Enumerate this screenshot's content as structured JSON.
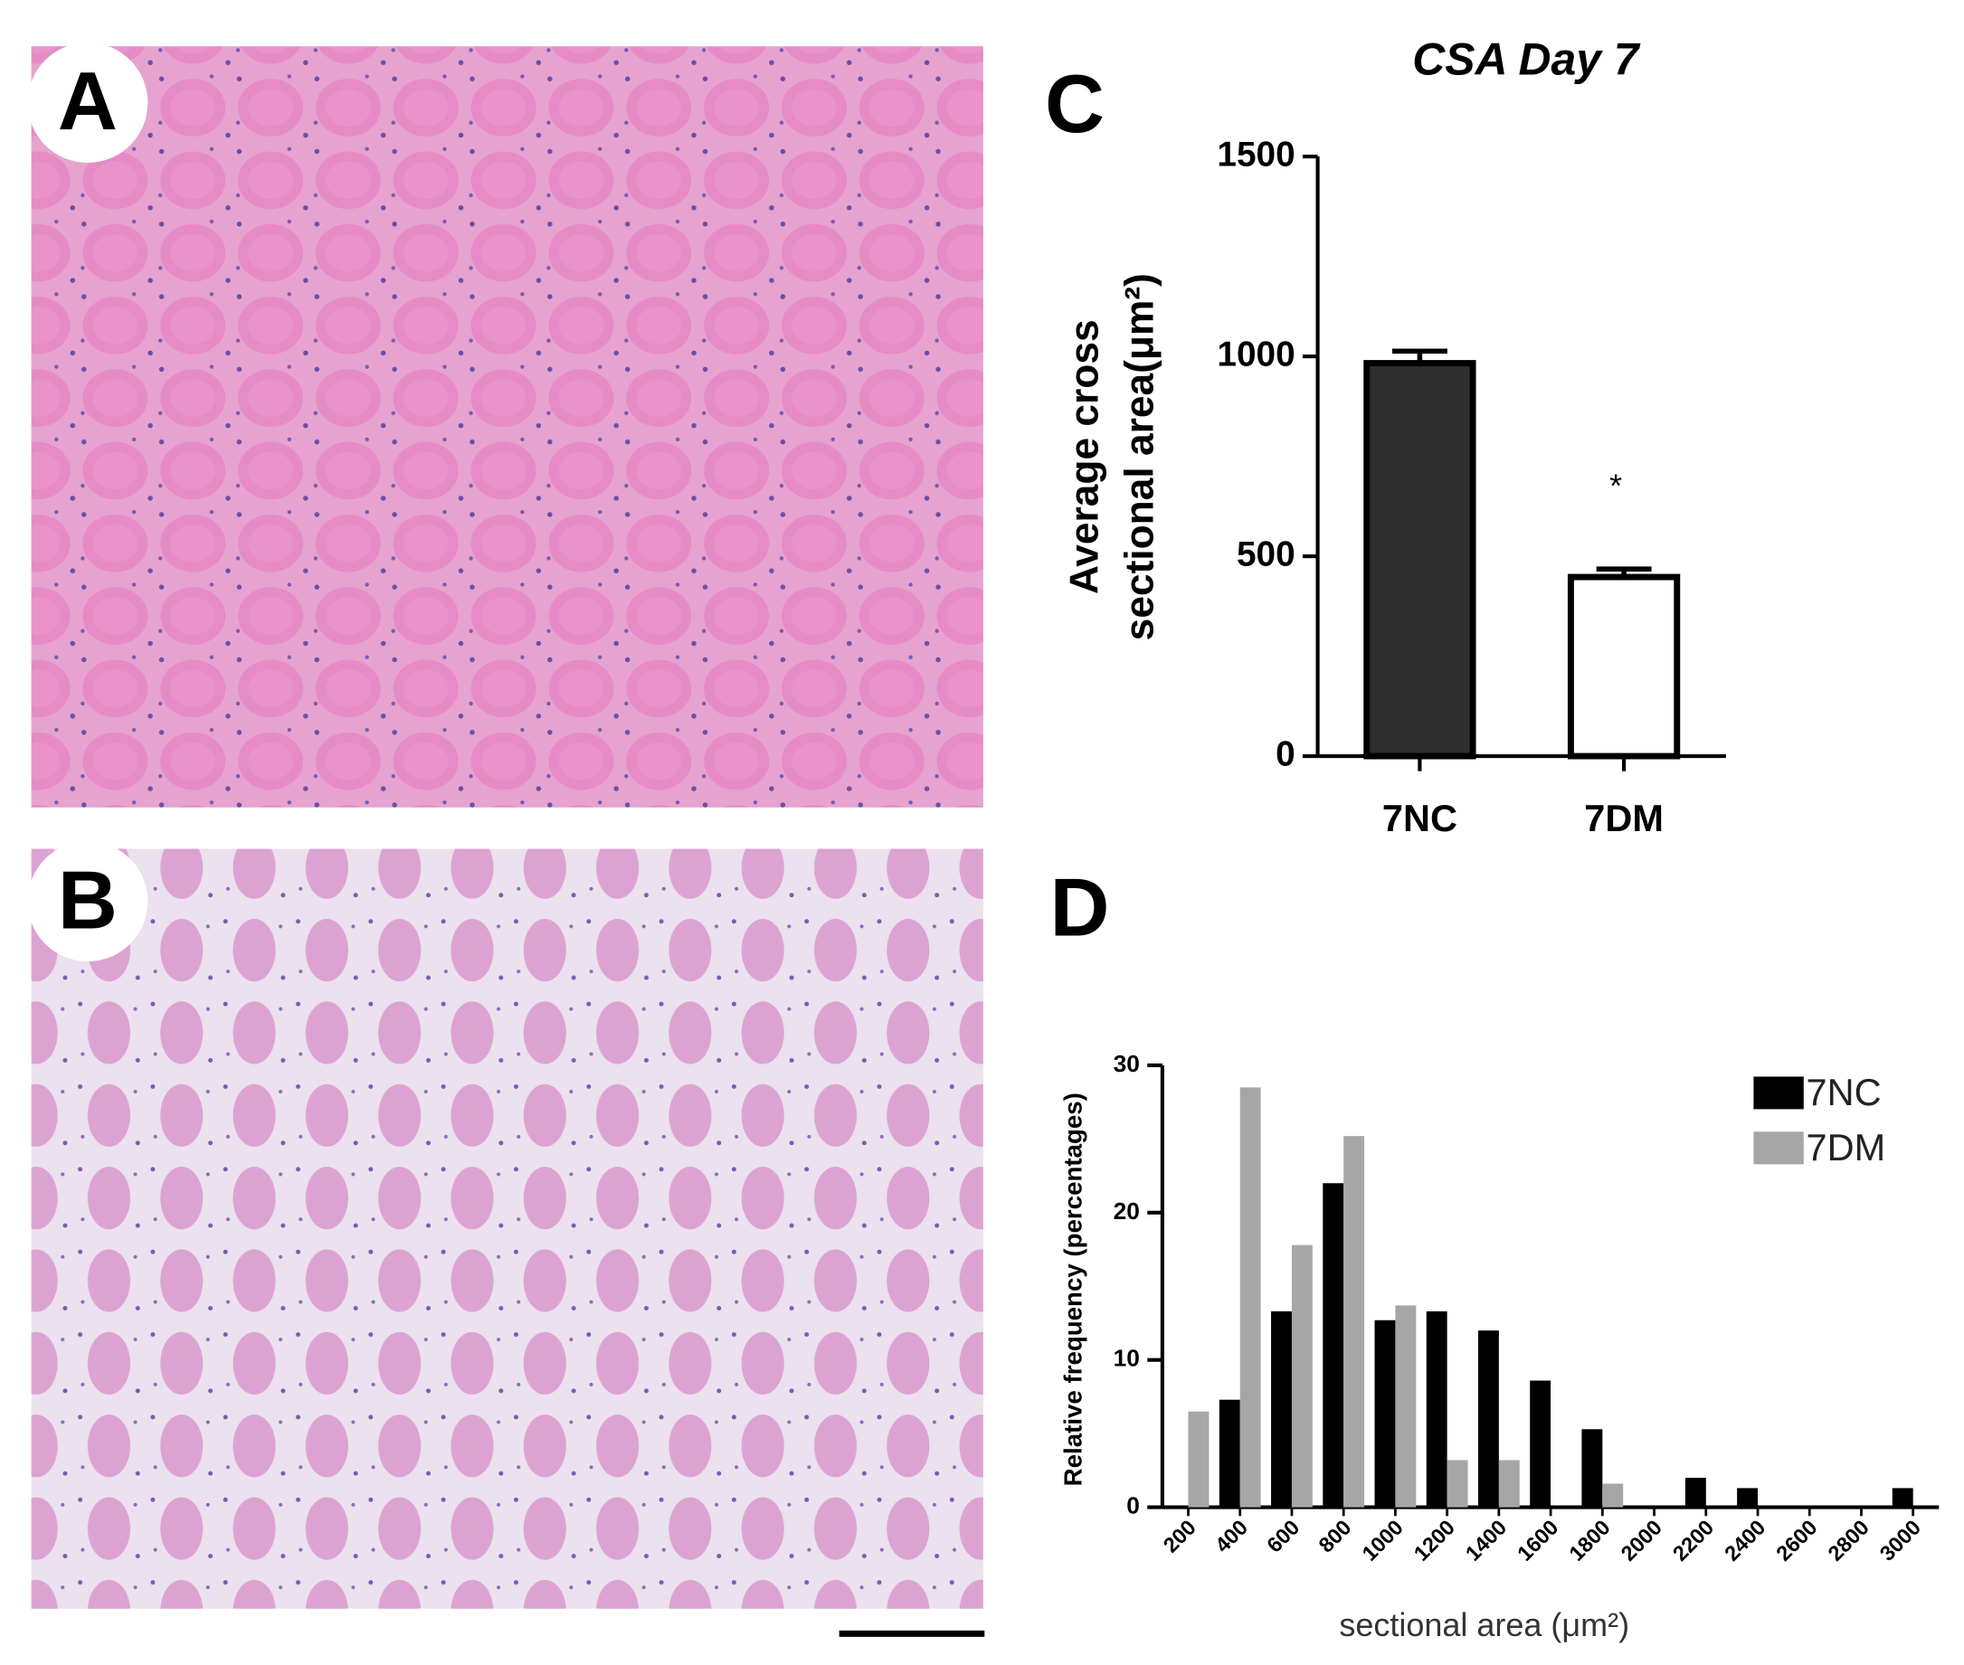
{
  "panels": [
    "A",
    "B",
    "C",
    "D"
  ],
  "chart_data": [
    {
      "type": "bar",
      "title": "CSA Day 7",
      "y_label": [
        "Average cross",
        "sectional area(μm²)"
      ],
      "categories": [
        "7NC",
        "7DM"
      ],
      "values": [
        983,
        448
      ],
      "errors": [
        30,
        20
      ],
      "colors": [
        "#2e2e2e",
        "#ffffff"
      ],
      "annotation": "*",
      "ylim": [
        0,
        1500
      ],
      "yticks": [
        0,
        500,
        1000,
        1500
      ]
    },
    {
      "type": "bar",
      "x_label": "sectional area (μm²)",
      "y_label": "Relative frequency (percentages)",
      "categories": [
        "200",
        "400",
        "600",
        "800",
        "1000",
        "1200",
        "1400",
        "1600",
        "1800",
        "2000",
        "2200",
        "2400",
        "2600",
        "2800",
        "3000"
      ],
      "series": [
        {
          "name": "7NC",
          "color": "#000000",
          "values": [
            0,
            7.3,
            13.3,
            22,
            12.7,
            13.3,
            12,
            8.6,
            5.3,
            0,
            2,
            1.3,
            0,
            0,
            1.3
          ]
        },
        {
          "name": "7DM",
          "color": "#a6a6a6",
          "values": [
            6.5,
            28.5,
            17.8,
            25.2,
            13.7,
            3.2,
            3.2,
            0,
            1.6,
            0,
            0,
            0,
            0,
            0,
            0
          ]
        }
      ],
      "ylim": [
        0,
        30
      ],
      "yticks": [
        0,
        10,
        20,
        30
      ],
      "legend": "top-right"
    }
  ]
}
